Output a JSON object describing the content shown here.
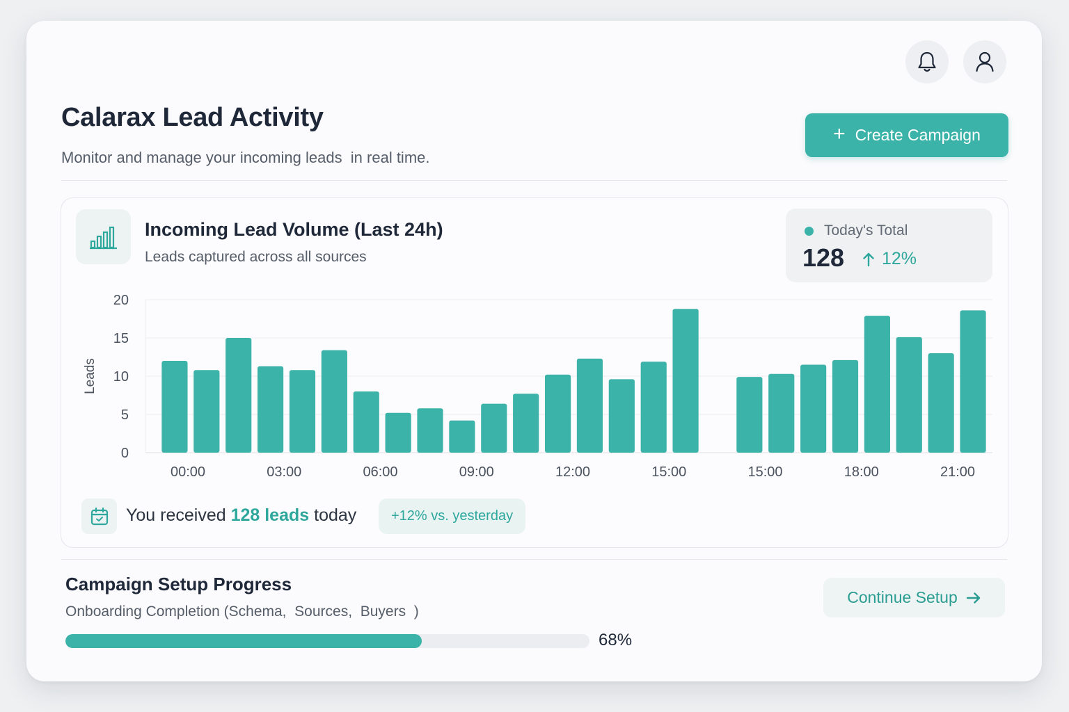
{
  "header": {
    "title": "Calarax Lead Activity",
    "subtitle": "Monitor and manage your incoming leads  in real time.",
    "create_label": "Create Campaign",
    "icons": [
      "bell-icon",
      "user-icon"
    ]
  },
  "panel": {
    "title": "Incoming Lead Volume (Last 24h)",
    "subtitle": "Leads captured across all sources",
    "total": {
      "label": "Today's Total",
      "value": "128",
      "change": "12%"
    },
    "summary": {
      "prefix": "You received ",
      "highlight": "128 leads",
      "suffix": " today",
      "badge": "+12% vs. yesterday"
    }
  },
  "chart_data": {
    "type": "bar",
    "ylabel": "Leads",
    "ylim": [
      0,
      20
    ],
    "yticks": [
      0,
      5,
      10,
      15,
      20
    ],
    "tick_labels": [
      "00:00",
      "03:00",
      "06:00",
      "09:00",
      "12:00",
      "15:00",
      "15:00",
      "18:00",
      "21:00"
    ],
    "values": [
      12,
      10.8,
      15,
      11.3,
      10.8,
      13.4,
      8,
      5.2,
      5.8,
      4.2,
      6.4,
      7.7,
      10.2,
      12.3,
      9.6,
      11.9,
      18.8,
      null,
      9.9,
      10.3,
      11.5,
      12.1,
      17.9,
      15.1,
      13,
      18.6
    ],
    "color": "#3bb3a8",
    "grid": true
  },
  "progress": {
    "title": "Campaign Setup Progress",
    "subtitle": "Onboarding Completion (Schema,  Sources,  Buyers  )",
    "value": 0.68,
    "percent_label": "68%",
    "continue_label": "Continue Setup"
  },
  "colors": {
    "accent": "#3bb3a8",
    "accent_text": "#2ea79c"
  }
}
